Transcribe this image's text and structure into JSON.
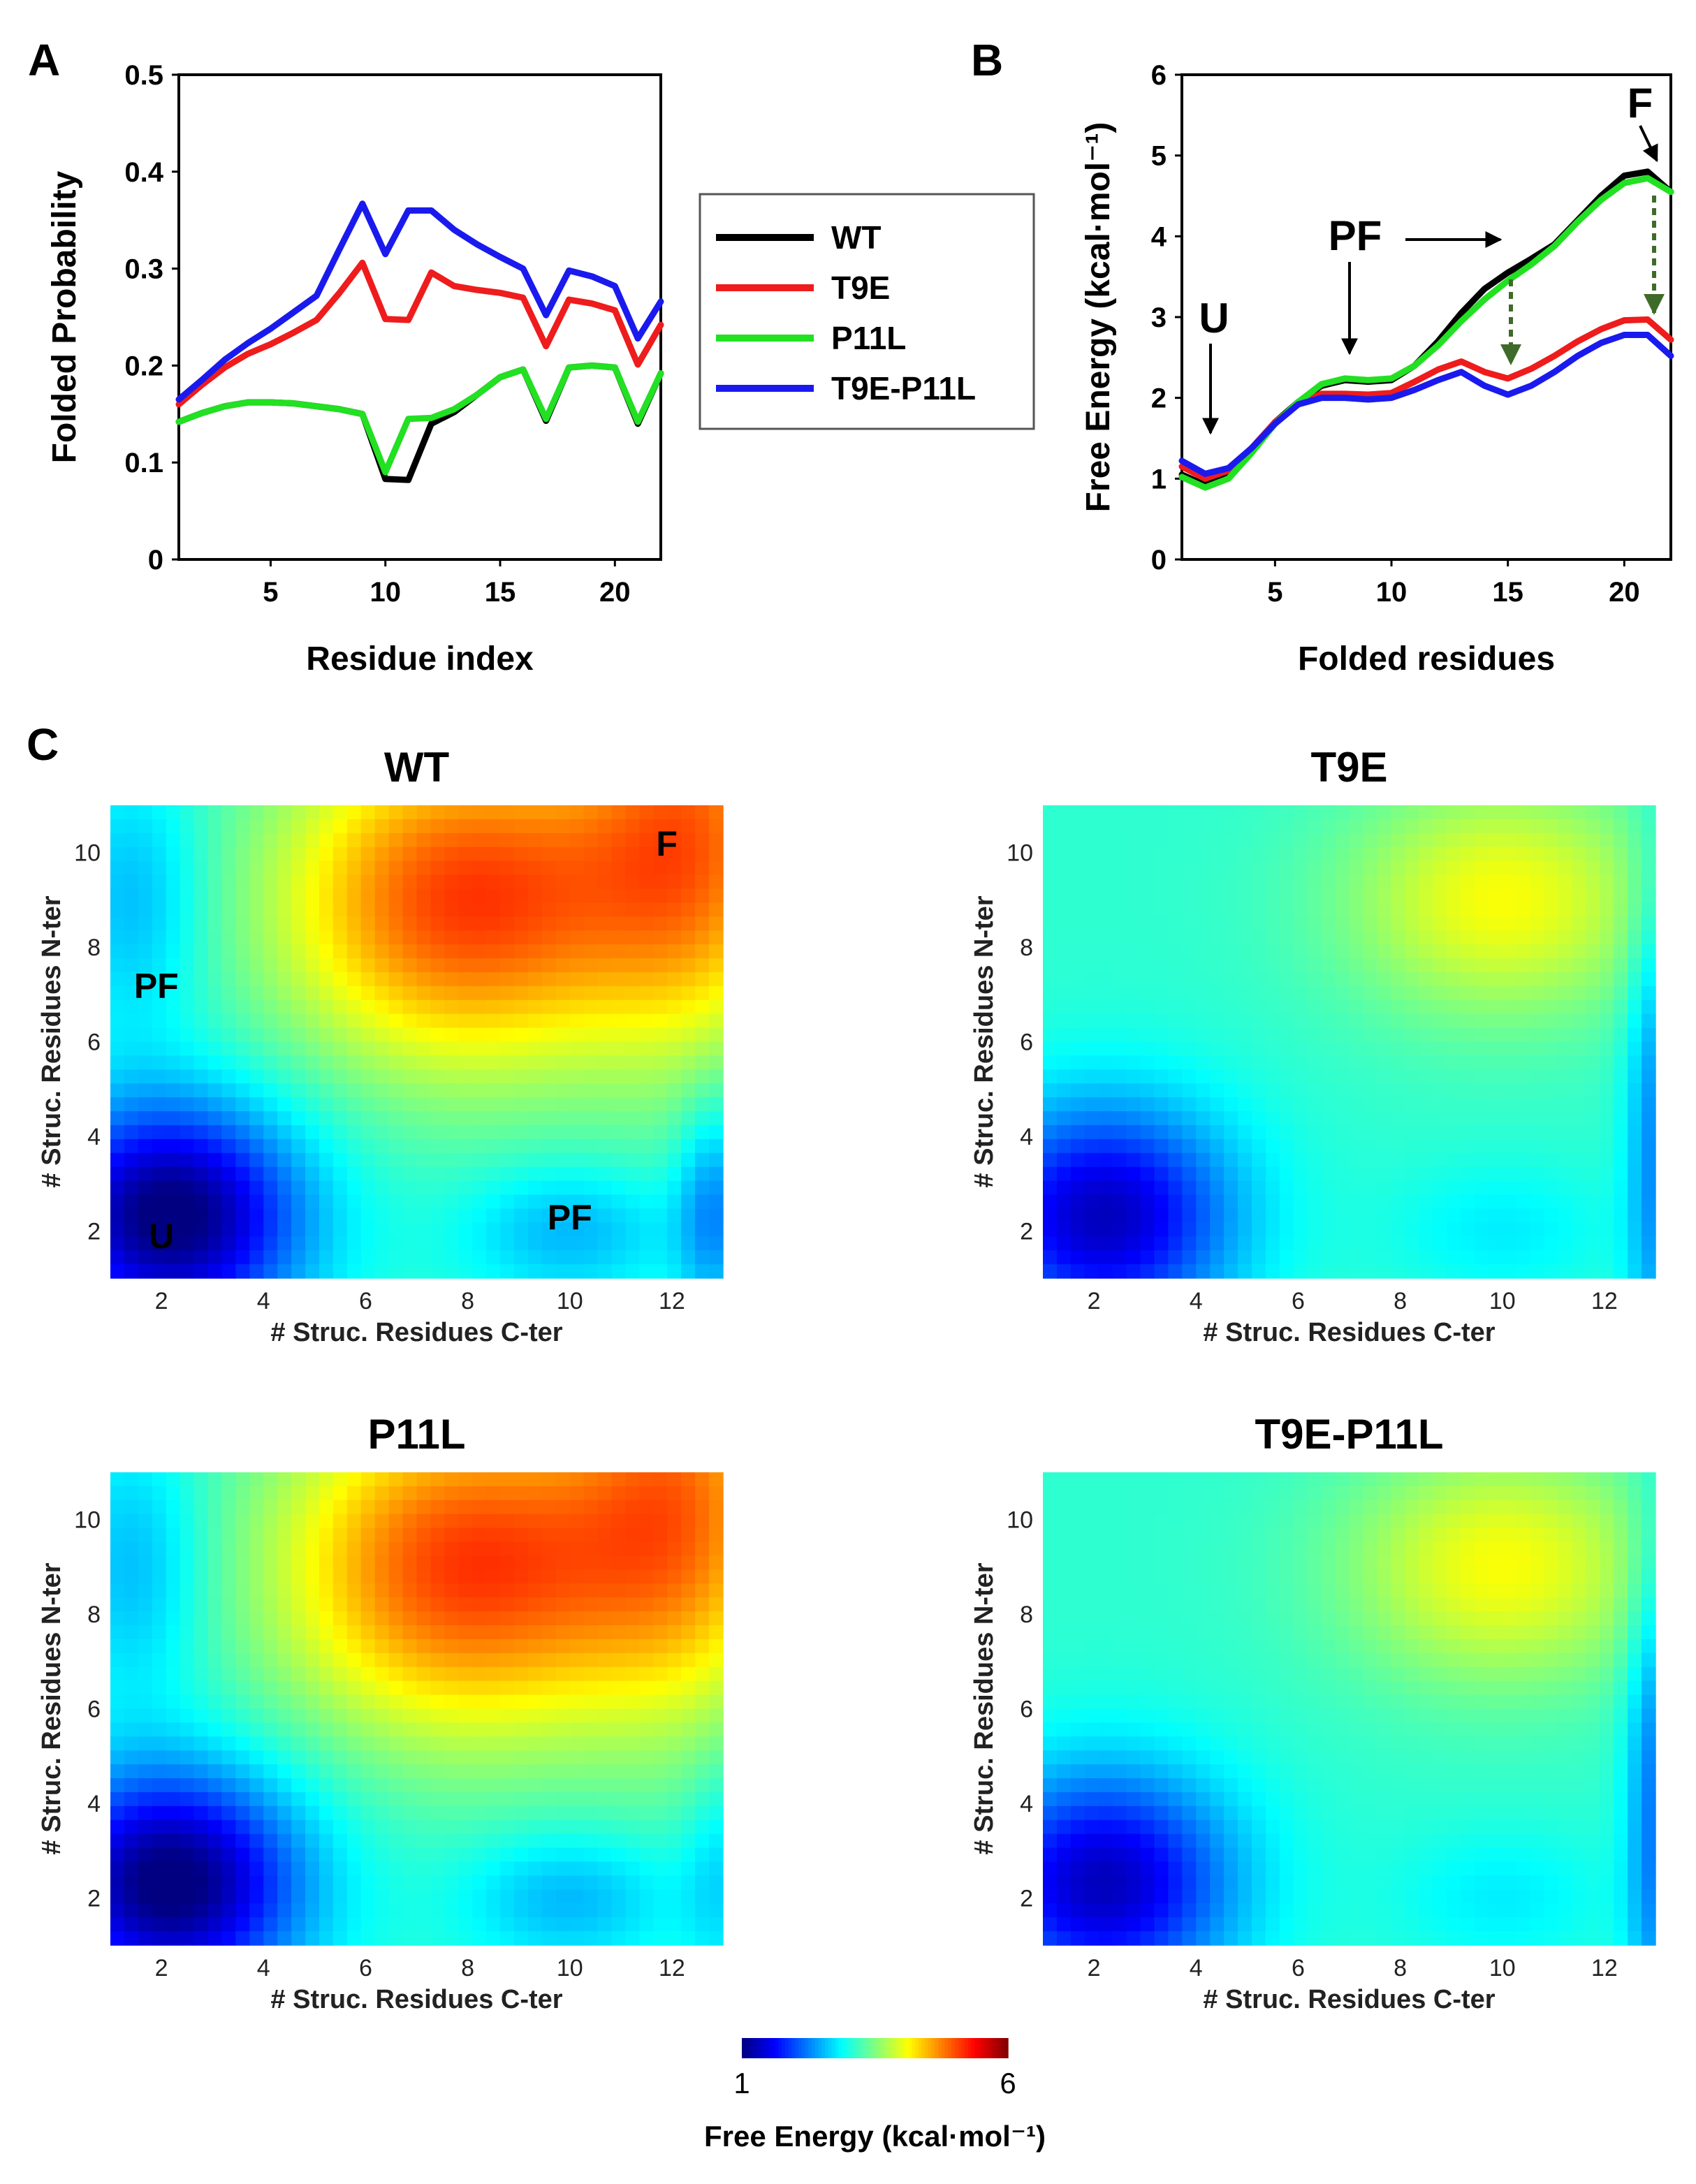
{
  "chart_data": [
    {
      "panel": "A",
      "type": "line",
      "xlabel": "Residue index",
      "ylabel": "Folded Probability",
      "xlim": [
        1,
        22
      ],
      "ylim": [
        0,
        0.5
      ],
      "xticks": [
        "5",
        "10",
        "15",
        "20"
      ],
      "yticks": [
        "0",
        "0.1",
        "0.2",
        "0.3",
        "0.4",
        "0.5"
      ],
      "x": [
        1,
        2,
        3,
        4,
        5,
        6,
        7,
        8,
        9,
        10,
        11,
        12,
        13,
        14,
        15,
        16,
        17,
        18,
        19,
        20,
        21,
        22
      ],
      "series": [
        {
          "name": "WT",
          "color": "#000000",
          "values": [
            0.142,
            0.151,
            0.158,
            0.162,
            0.162,
            0.161,
            0.158,
            0.155,
            0.15,
            0.083,
            0.082,
            0.14,
            0.152,
            0.17,
            0.188,
            0.196,
            0.143,
            0.198,
            0.2,
            0.198,
            0.14,
            0.192
          ]
        },
        {
          "name": "T9E",
          "color": "#ee1c1c",
          "values": [
            0.16,
            0.18,
            0.198,
            0.212,
            0.222,
            0.234,
            0.247,
            0.275,
            0.306,
            0.248,
            0.247,
            0.296,
            0.282,
            0.278,
            0.275,
            0.27,
            0.22,
            0.268,
            0.264,
            0.257,
            0.201,
            0.242
          ]
        },
        {
          "name": "P11L",
          "color": "#22e022",
          "values": [
            0.142,
            0.151,
            0.158,
            0.162,
            0.162,
            0.161,
            0.158,
            0.155,
            0.15,
            0.09,
            0.145,
            0.146,
            0.155,
            0.17,
            0.188,
            0.196,
            0.145,
            0.198,
            0.2,
            0.198,
            0.142,
            0.192
          ]
        },
        {
          "name": "T9E-P11L",
          "color": "#1a1aee",
          "values": [
            0.165,
            0.185,
            0.206,
            0.223,
            0.238,
            0.255,
            0.272,
            0.32,
            0.367,
            0.315,
            0.36,
            0.36,
            0.34,
            0.325,
            0.312,
            0.3,
            0.252,
            0.298,
            0.292,
            0.282,
            0.228,
            0.266
          ]
        }
      ],
      "annotations": []
    },
    {
      "panel": "B",
      "type": "line",
      "xlabel": "Folded residues",
      "ylabel": "Free Energy (kcal·mol⁻¹)",
      "xlim": [
        1,
        22
      ],
      "ylim": [
        0,
        6
      ],
      "xticks": [
        "5",
        "10",
        "15",
        "20"
      ],
      "yticks": [
        "0",
        "1",
        "2",
        "3",
        "4",
        "5",
        "6"
      ],
      "x": [
        1,
        2,
        3,
        4,
        5,
        6,
        7,
        8,
        9,
        10,
        11,
        12,
        13,
        14,
        15,
        16,
        17,
        18,
        19,
        20,
        21,
        22
      ],
      "series": [
        {
          "name": "WT",
          "color": "#000000",
          "values": [
            1.05,
            0.92,
            1.03,
            1.35,
            1.7,
            1.95,
            2.15,
            2.22,
            2.2,
            2.22,
            2.4,
            2.7,
            3.05,
            3.35,
            3.55,
            3.72,
            3.9,
            4.2,
            4.5,
            4.75,
            4.8,
            4.55
          ]
        },
        {
          "name": "T9E",
          "color": "#ee1c1c",
          "values": [
            1.15,
            1.0,
            1.1,
            1.38,
            1.7,
            1.93,
            2.05,
            2.05,
            2.04,
            2.06,
            2.2,
            2.35,
            2.45,
            2.32,
            2.24,
            2.36,
            2.52,
            2.7,
            2.85,
            2.96,
            2.97,
            2.72
          ]
        },
        {
          "name": "P11L",
          "color": "#22e022",
          "values": [
            1.02,
            0.89,
            1.0,
            1.32,
            1.68,
            1.95,
            2.17,
            2.24,
            2.22,
            2.24,
            2.4,
            2.65,
            2.95,
            3.22,
            3.45,
            3.65,
            3.88,
            4.18,
            4.45,
            4.66,
            4.72,
            4.55
          ]
        },
        {
          "name": "T9E-P11L",
          "color": "#1a1aee",
          "values": [
            1.22,
            1.06,
            1.13,
            1.38,
            1.68,
            1.92,
            2.0,
            2.0,
            1.98,
            2.0,
            2.1,
            2.22,
            2.32,
            2.15,
            2.04,
            2.15,
            2.32,
            2.52,
            2.68,
            2.78,
            2.78,
            2.52
          ]
        }
      ],
      "annotations": [
        {
          "label": "U",
          "x": 2.1,
          "y": 1.55
        },
        {
          "label": "PF",
          "x": 8.4,
          "y": 2.9
        },
        {
          "label": "F",
          "x": 21.3,
          "y": 5.05
        }
      ]
    },
    {
      "panel": "C",
      "type": "heatmap",
      "colorbar": {
        "min": 1,
        "max": 6,
        "min_label": "1",
        "max_label": "6",
        "title": "Free Energy (kcal·mol⁻¹)",
        "colormap": "jet"
      },
      "xlim": [
        1,
        13
      ],
      "ylim": [
        1,
        11
      ],
      "xticks": [
        "2",
        "4",
        "6",
        "8",
        "10",
        "12"
      ],
      "yticks": [
        "2",
        "4",
        "6",
        "8",
        "10"
      ],
      "xlabel": "# Struc. Residues C-ter",
      "ylabel": "# Struc. Residues N-ter",
      "maps": [
        {
          "title": "WT",
          "bumps": [
            {
              "x": 2.2,
              "y": 2.3,
              "a": -2.2,
              "sx": 1.8,
              "sy": 1.7
            },
            {
              "x": 8,
              "y": 9,
              "a": 2.0,
              "sx": 2.6,
              "sy": 2.5
            },
            {
              "x": 12.5,
              "y": 10.5,
              "a": 1.5,
              "sx": 1.6,
              "sy": 3.2
            },
            {
              "x": 10,
              "y": 2,
              "a": -0.6,
              "sx": 1.5,
              "sy": 1.0
            },
            {
              "x": 12.8,
              "y": 2.5,
              "a": -0.8,
              "sx": 0.5,
              "sy": 1.6
            },
            {
              "x": 1.5,
              "y": 9,
              "a": -0.6,
              "sx": 1.0,
              "sy": 2.0
            }
          ],
          "annotations": [
            {
              "label": "F",
              "x": 11.9,
              "y": 10.2
            },
            {
              "label": "PF",
              "x": 1.9,
              "y": 7.2
            },
            {
              "label": "PF",
              "x": 10.0,
              "y": 2.3
            },
            {
              "label": "U",
              "x": 2.0,
              "y": 1.9
            }
          ]
        },
        {
          "title": "T9E",
          "bumps": [
            {
              "x": 2.2,
              "y": 2.3,
              "a": -1.8,
              "sx": 1.8,
              "sy": 1.7
            },
            {
              "x": 10,
              "y": 9,
              "a": 1.0,
              "sx": 2.2,
              "sy": 1.8
            },
            {
              "x": 13,
              "y": 4,
              "a": -0.8,
              "sx": 0.4,
              "sy": 4.0
            },
            {
              "x": 10,
              "y": 2,
              "a": -0.3,
              "sx": 1.5,
              "sy": 1.0
            }
          ],
          "annotations": []
        },
        {
          "title": "P11L",
          "bumps": [
            {
              "x": 2.2,
              "y": 2.3,
              "a": -2.2,
              "sx": 1.8,
              "sy": 1.7
            },
            {
              "x": 8,
              "y": 9,
              "a": 2.0,
              "sx": 2.6,
              "sy": 2.5
            },
            {
              "x": 12.3,
              "y": 10.5,
              "a": 1.4,
              "sx": 1.6,
              "sy": 3.2
            },
            {
              "x": 10,
              "y": 2,
              "a": -0.6,
              "sx": 1.5,
              "sy": 1.0
            },
            {
              "x": 12.9,
              "y": 2.5,
              "a": -0.4,
              "sx": 0.5,
              "sy": 1.6
            },
            {
              "x": 1.5,
              "y": 9,
              "a": -0.6,
              "sx": 1.0,
              "sy": 2.0
            }
          ],
          "annotations": []
        },
        {
          "title": "T9E-P11L",
          "bumps": [
            {
              "x": 2.2,
              "y": 2.3,
              "a": -1.8,
              "sx": 1.8,
              "sy": 1.7
            },
            {
              "x": 10,
              "y": 9,
              "a": 1.0,
              "sx": 2.2,
              "sy": 1.8
            },
            {
              "x": 13,
              "y": 4,
              "a": -0.9,
              "sx": 0.4,
              "sy": 4.0
            },
            {
              "x": 10,
              "y": 2,
              "a": -0.3,
              "sx": 1.5,
              "sy": 1.0
            }
          ],
          "annotations": []
        }
      ]
    }
  ],
  "legend": {
    "entries": [
      "WT",
      "T9E",
      "P11L",
      "T9E-P11L"
    ],
    "colors": [
      "#000000",
      "#ee1c1c",
      "#22e022",
      "#1a1aee"
    ]
  },
  "panel_labels": {
    "a": "A",
    "b": "B",
    "c": "C"
  }
}
